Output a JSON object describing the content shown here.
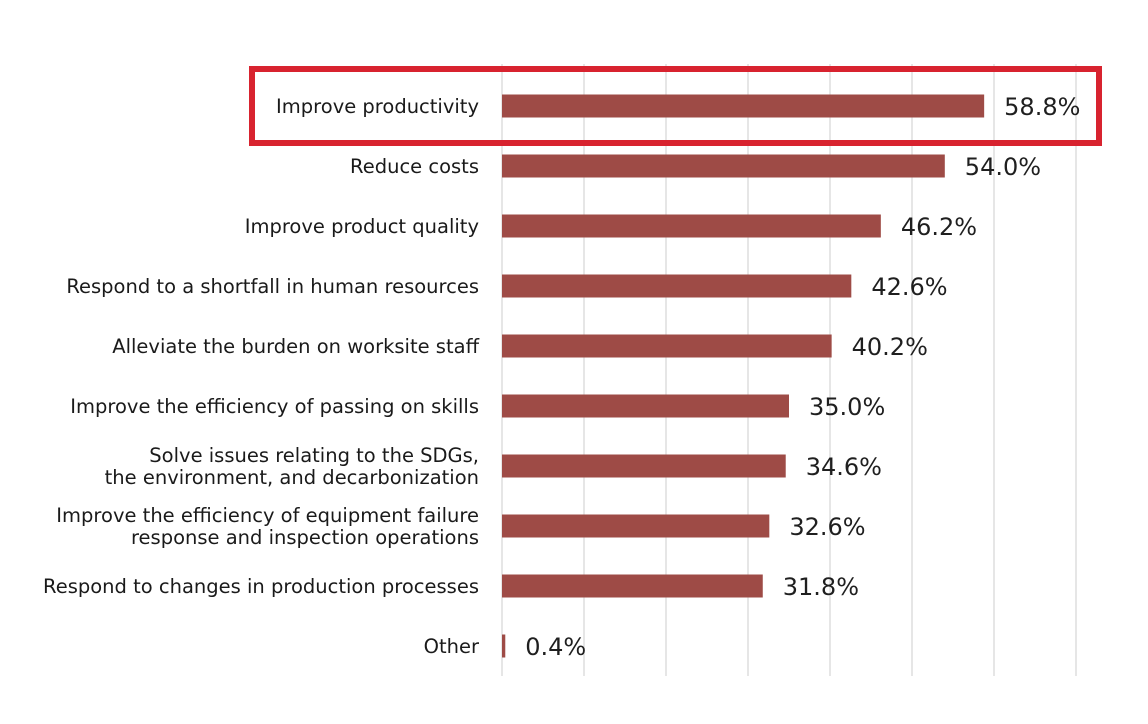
{
  "chart_data": {
    "type": "bar",
    "orientation": "horizontal",
    "categories": [
      "Improve productivity",
      "Reduce costs",
      "Improve product quality",
      "Respond to a shortfall in human resources",
      "Alleviate the burden on worksite staff",
      "Improve the efficiency of passing on skills",
      "Solve issues relating to the SDGs,\nthe environment, and decarbonization",
      "Improve the efficiency of equipment failure\nresponse and inspection operations",
      "Respond to changes in production processes",
      "Other"
    ],
    "values": [
      58.8,
      54.0,
      46.2,
      42.6,
      40.2,
      35.0,
      34.6,
      32.6,
      31.8,
      0.4
    ],
    "value_labels": [
      "58.8%",
      "54.0%",
      "46.2%",
      "42.6%",
      "40.2%",
      "35.0%",
      "34.6%",
      "32.6%",
      "31.8%",
      "0.4%"
    ],
    "unit": "%",
    "xlim": [
      0,
      70
    ],
    "grid": true,
    "grid_step": 10,
    "highlighted_category": "Improve productivity",
    "colors": {
      "bar": "#9e4b46",
      "highlight_box": "#d8232f",
      "grid": "#d6d6d6"
    }
  }
}
